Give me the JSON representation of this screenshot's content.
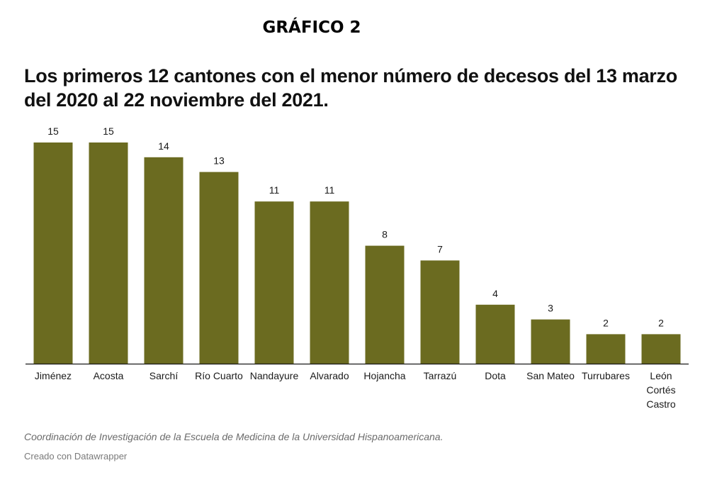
{
  "header": {
    "label": "GRÁFICO 2",
    "title": "Los primeros 12 cantones con el menor número de decesos del 13 marzo del 2020 al 22 noviembre del 2021."
  },
  "chart_data": {
    "type": "bar",
    "categories": [
      "Jiménez",
      "Acosta",
      "Sarchí",
      "Río Cuarto",
      "Nandayure",
      "Alvarado",
      "Hojancha",
      "Tarrazú",
      "Dota",
      "San Mateo",
      "Turrubares",
      "León Cortés Castro"
    ],
    "category_lines": [
      [
        "Jiménez"
      ],
      [
        "Acosta"
      ],
      [
        "Sarchí"
      ],
      [
        "Río Cuarto"
      ],
      [
        "Nandayure"
      ],
      [
        "Alvarado"
      ],
      [
        "Hojancha"
      ],
      [
        "Tarrazú"
      ],
      [
        "Dota"
      ],
      [
        "San Mateo"
      ],
      [
        "Turrubares"
      ],
      [
        "León",
        "Cortés",
        "Castro"
      ]
    ],
    "values": [
      15,
      15,
      14,
      13,
      11,
      11,
      8,
      7,
      4,
      3,
      2,
      2
    ],
    "bar_color": "#6b6b20",
    "axis_color": "#1a1a1a",
    "ylim": [
      0,
      15
    ],
    "grid": false,
    "data_labels": true
  },
  "footer": {
    "source": "Coordinación de Investigación de la Escuela de Medicina de la Universidad Hispanoamericana.",
    "credit": "Creado con Datawrapper"
  }
}
